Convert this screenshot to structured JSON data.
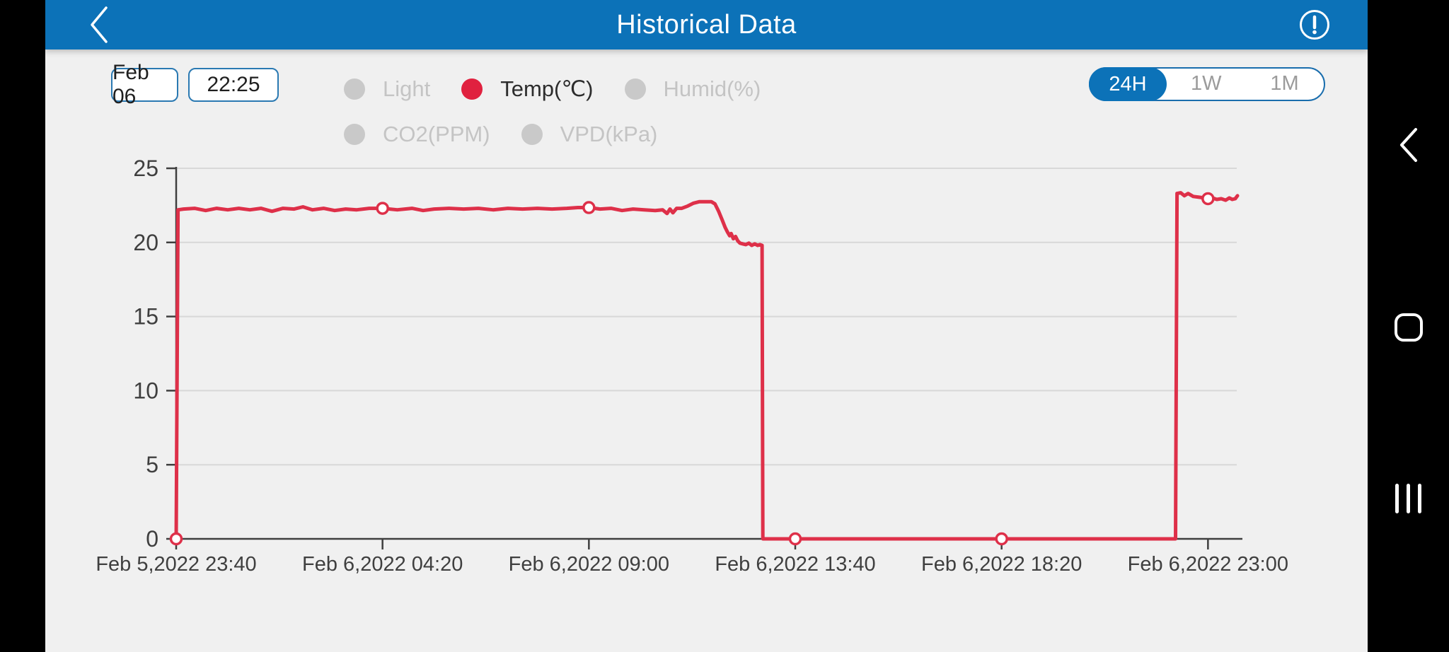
{
  "header": {
    "title": "Historical Data",
    "back_icon": "chevron-left",
    "info_icon": "exclamation-circle"
  },
  "controls": {
    "date_value": "Feb 06",
    "time_value": "22:25",
    "legend": [
      {
        "label": "Light",
        "active": false
      },
      {
        "label": "Temp(℃)",
        "active": true
      },
      {
        "label": "Humid(%)",
        "active": false
      },
      {
        "label": "CO2(PPM)",
        "active": false
      },
      {
        "label": "VPD(kPa)",
        "active": false
      }
    ],
    "range_toggle": {
      "options": [
        "24H",
        "1W",
        "1M"
      ],
      "selected": "24H"
    }
  },
  "colors": {
    "accent_blue": "#0c72b8",
    "background": "#f0f0f0",
    "line_red": "#de3049",
    "dot_red": "#e0213f",
    "dot_gray": "#c9c9c9",
    "text_dark": "#2d2d2d",
    "text_gray": "#c4c4c4",
    "grid": "#d8d8d8",
    "axis": "#3f3f3f"
  },
  "system_nav": {
    "back_icon": "chevron-left",
    "home_icon": "rounded-square",
    "recents_icon": "three-bars"
  },
  "chart_data": {
    "type": "line",
    "title": "",
    "xlabel": "",
    "ylabel": "",
    "grid": true,
    "ylim": [
      0,
      25
    ],
    "yticks": [
      0,
      5,
      10,
      15,
      20,
      25
    ],
    "x_unit": "minutes_since_start",
    "xlim": [
      0,
      1440
    ],
    "xticks": [
      {
        "t": 0,
        "label": "Feb 5,2022 23:40"
      },
      {
        "t": 280,
        "label": "Feb 6,2022 04:20"
      },
      {
        "t": 560,
        "label": "Feb 6,2022 09:00"
      },
      {
        "t": 840,
        "label": "Feb 6,2022 13:40"
      },
      {
        "t": 1120,
        "label": "Feb 6,2022 18:20"
      },
      {
        "t": 1400,
        "label": "Feb 6,2022 23:00"
      }
    ],
    "series": [
      {
        "name": "Temp(℃)",
        "color": "#de3049",
        "points": [
          [
            0,
            0
          ],
          [
            2.5,
            22.2
          ],
          [
            10,
            22.25
          ],
          [
            25,
            22.3
          ],
          [
            40,
            22.15
          ],
          [
            55,
            22.3
          ],
          [
            70,
            22.2
          ],
          [
            85,
            22.3
          ],
          [
            100,
            22.2
          ],
          [
            115,
            22.3
          ],
          [
            130,
            22.1
          ],
          [
            145,
            22.3
          ],
          [
            160,
            22.25
          ],
          [
            172,
            22.4
          ],
          [
            185,
            22.2
          ],
          [
            200,
            22.3
          ],
          [
            215,
            22.15
          ],
          [
            230,
            22.25
          ],
          [
            245,
            22.2
          ],
          [
            262,
            22.3
          ],
          [
            280,
            22.3
          ],
          [
            300,
            22.2
          ],
          [
            320,
            22.3
          ],
          [
            335,
            22.15
          ],
          [
            350,
            22.25
          ],
          [
            370,
            22.3
          ],
          [
            390,
            22.25
          ],
          [
            410,
            22.3
          ],
          [
            430,
            22.2
          ],
          [
            450,
            22.3
          ],
          [
            470,
            22.25
          ],
          [
            490,
            22.3
          ],
          [
            510,
            22.25
          ],
          [
            530,
            22.3
          ],
          [
            545,
            22.35
          ],
          [
            560,
            22.35
          ],
          [
            575,
            22.25
          ],
          [
            590,
            22.3
          ],
          [
            605,
            22.15
          ],
          [
            620,
            22.25
          ],
          [
            635,
            22.2
          ],
          [
            650,
            22.15
          ],
          [
            660,
            22.2
          ],
          [
            666,
            21.95
          ],
          [
            670,
            22.25
          ],
          [
            674,
            22.0
          ],
          [
            679,
            22.3
          ],
          [
            686,
            22.3
          ],
          [
            694,
            22.45
          ],
          [
            702,
            22.65
          ],
          [
            710,
            22.75
          ],
          [
            718,
            22.75
          ],
          [
            726,
            22.75
          ],
          [
            731,
            22.6
          ],
          [
            736,
            22.1
          ],
          [
            741,
            21.5
          ],
          [
            745,
            21.0
          ],
          [
            748,
            20.7
          ],
          [
            751,
            20.45
          ],
          [
            753,
            20.6
          ],
          [
            756,
            20.25
          ],
          [
            759,
            20.4
          ],
          [
            762,
            20.1
          ],
          [
            765,
            19.95
          ],
          [
            769,
            19.9
          ],
          [
            773,
            19.85
          ],
          [
            777,
            19.95
          ],
          [
            781,
            19.8
          ],
          [
            785,
            19.9
          ],
          [
            789,
            19.8
          ],
          [
            792,
            19.85
          ],
          [
            795,
            19.8
          ],
          [
            796,
            0
          ],
          [
            850,
            0
          ],
          [
            1000,
            0
          ],
          [
            1200,
            0
          ],
          [
            1356,
            0
          ],
          [
            1358,
            23.3
          ],
          [
            1363,
            23.35
          ],
          [
            1368,
            23.15
          ],
          [
            1373,
            23.3
          ],
          [
            1380,
            23.1
          ],
          [
            1388,
            23.05
          ],
          [
            1395,
            23.0
          ],
          [
            1400,
            22.95
          ],
          [
            1406,
            23.0
          ],
          [
            1412,
            22.9
          ],
          [
            1418,
            22.95
          ],
          [
            1424,
            22.85
          ],
          [
            1429,
            23.0
          ],
          [
            1433,
            22.9
          ],
          [
            1437,
            22.95
          ],
          [
            1440,
            23.15
          ]
        ]
      }
    ],
    "markers": [
      [
        0,
        0
      ],
      [
        280,
        22.3
      ],
      [
        560,
        22.35
      ],
      [
        840,
        0
      ],
      [
        1120,
        0
      ],
      [
        1400,
        22.95
      ]
    ]
  }
}
